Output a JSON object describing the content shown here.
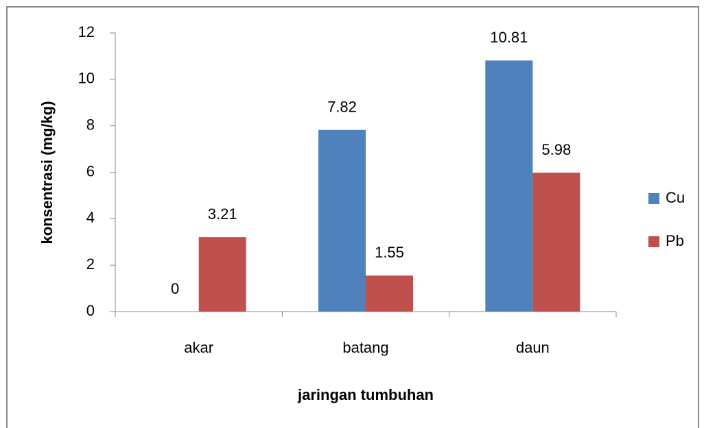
{
  "chart_data": {
    "type": "bar",
    "x_label": "jaringan tumbuhan",
    "y_label": "konsentrasi (mg/kg)",
    "categories": [
      "akar",
      "batang",
      "daun"
    ],
    "series": [
      {
        "name": "Cu",
        "color": "#4f81bd",
        "values": [
          0,
          7.82,
          10.81
        ]
      },
      {
        "name": "Pb",
        "color": "#c0504d",
        "values": [
          3.21,
          1.55,
          5.98
        ]
      }
    ],
    "ylim": [
      0,
      12
    ],
    "yticks": [
      0,
      2,
      4,
      6,
      8,
      10,
      12
    ],
    "legend": "right"
  }
}
